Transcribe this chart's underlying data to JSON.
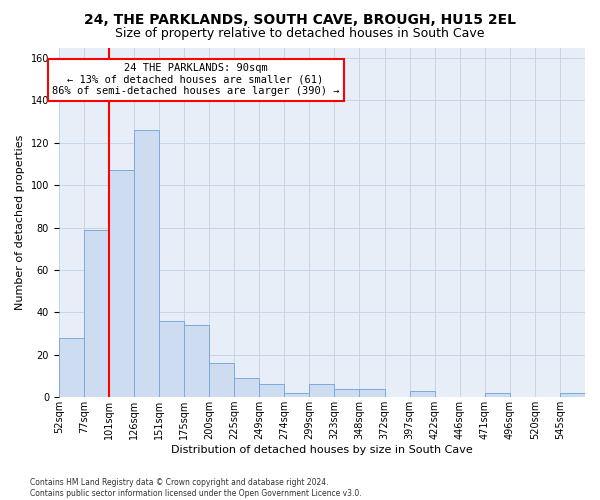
{
  "title": "24, THE PARKLANDS, SOUTH CAVE, BROUGH, HU15 2EL",
  "subtitle": "Size of property relative to detached houses in South Cave",
  "xlabel": "Distribution of detached houses by size in South Cave",
  "ylabel": "Number of detached properties",
  "bar_color": "#cddcf0",
  "bar_edge_color": "#7aabdc",
  "grid_color": "#c8d4e8",
  "background_color": "#e8eef8",
  "annotation_text": "24 THE PARKLANDS: 90sqm\n← 13% of detached houses are smaller (61)\n86% of semi-detached houses are larger (390) →",
  "redline_bar_index": 1,
  "categories": [
    "52sqm",
    "77sqm",
    "101sqm",
    "126sqm",
    "151sqm",
    "175sqm",
    "200sqm",
    "225sqm",
    "249sqm",
    "274sqm",
    "299sqm",
    "323sqm",
    "348sqm",
    "372sqm",
    "397sqm",
    "422sqm",
    "446sqm",
    "471sqm",
    "496sqm",
    "520sqm",
    "545sqm"
  ],
  "values": [
    28,
    79,
    107,
    126,
    36,
    34,
    16,
    9,
    6,
    2,
    6,
    4,
    4,
    0,
    3,
    0,
    0,
    2,
    0,
    0,
    2
  ],
  "ylim": [
    0,
    165
  ],
  "yticks": [
    0,
    20,
    40,
    60,
    80,
    100,
    120,
    140,
    160
  ],
  "footer": "Contains HM Land Registry data © Crown copyright and database right 2024.\nContains public sector information licensed under the Open Government Licence v3.0.",
  "title_fontsize": 10,
  "subtitle_fontsize": 9,
  "ylabel_fontsize": 8,
  "xlabel_fontsize": 8,
  "tick_fontsize": 7,
  "ann_fontsize": 7.5
}
